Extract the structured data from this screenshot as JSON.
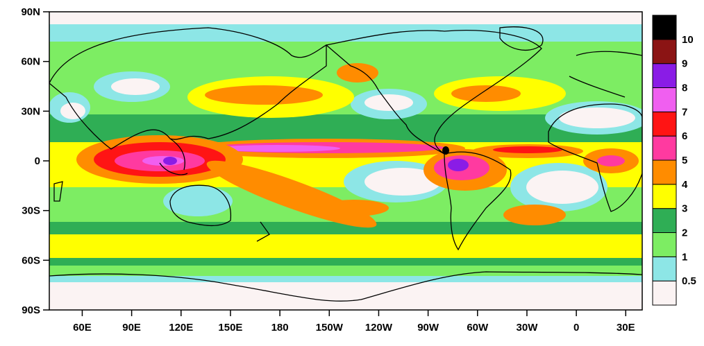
{
  "axes": {
    "y_ticks": [
      "90N",
      "60N",
      "30N",
      "0",
      "30S",
      "60S",
      "90S"
    ],
    "x_ticks": [
      "60E",
      "90E",
      "120E",
      "150E",
      "180",
      "150W",
      "120W",
      "90W",
      "60W",
      "30W",
      "0",
      "30E"
    ]
  },
  "colorbar": {
    "levels": [
      "0.5",
      "1",
      "2",
      "3",
      "4",
      "5",
      "6",
      "7",
      "8",
      "9",
      "10"
    ],
    "colors": [
      "#fbf3f3",
      "#8de6e6",
      "#7ded63",
      "#2fae55",
      "#ffff00",
      "#ff8c00",
      "#ff3aa0",
      "#ff1414",
      "#f05ff0",
      "#8a1ce6",
      "#8b1414",
      "#000000"
    ]
  },
  "colors": {
    "frame": "#000000",
    "coast": "#000000",
    "background": "#ffffff"
  }
}
